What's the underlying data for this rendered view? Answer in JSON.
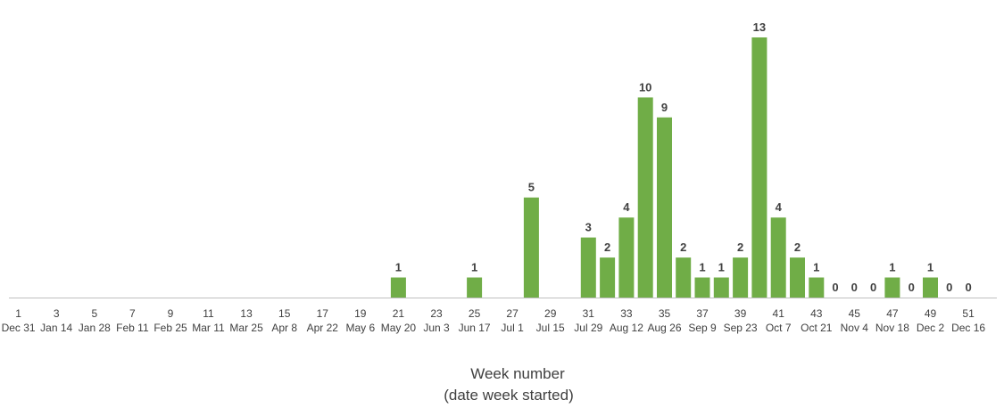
{
  "chart_data": {
    "type": "bar",
    "x": [
      1,
      2,
      3,
      4,
      5,
      6,
      7,
      8,
      9,
      10,
      11,
      12,
      13,
      14,
      15,
      16,
      17,
      18,
      19,
      20,
      21,
      22,
      23,
      24,
      25,
      26,
      27,
      28,
      29,
      30,
      31,
      32,
      33,
      34,
      35,
      36,
      37,
      38,
      39,
      40,
      41,
      42,
      43,
      44,
      45,
      46,
      47,
      48,
      49,
      50,
      51,
      52
    ],
    "values": [
      null,
      null,
      null,
      null,
      null,
      null,
      null,
      null,
      null,
      null,
      null,
      null,
      null,
      null,
      null,
      null,
      null,
      null,
      null,
      null,
      1,
      null,
      null,
      null,
      1,
      null,
      null,
      5,
      null,
      null,
      3,
      2,
      4,
      10,
      9,
      2,
      1,
      1,
      2,
      13,
      4,
      2,
      1,
      0,
      0,
      0,
      1,
      0,
      1,
      0,
      0,
      null
    ],
    "tick_weeks": [
      "1",
      "3",
      "5",
      "7",
      "9",
      "11",
      "13",
      "15",
      "17",
      "19",
      "21",
      "23",
      "25",
      "27",
      "29",
      "31",
      "33",
      "35",
      "37",
      "39",
      "41",
      "43",
      "45",
      "47",
      "49",
      "51"
    ],
    "tick_dates": [
      "Dec 31",
      "Jan 14",
      "Jan 28",
      "Feb 11",
      "Feb 25",
      "Mar 11",
      "Mar 25",
      "Apr 8",
      "Apr 22",
      "May 6",
      "May 20",
      "Jun 3",
      "Jun 17",
      "Jul 1",
      "Jul 15",
      "Jul 29",
      "Aug 12",
      "Aug 26",
      "Sep 9",
      "Sep 23",
      "Oct 7",
      "Oct 21",
      "Nov 4",
      "Nov 18",
      "Dec 2",
      "Dec 16"
    ],
    "xlabel": "Week number",
    "xlabel_sub": "(date week started)",
    "ylim": [
      0,
      13
    ],
    "grid": false,
    "bar_color": "#70ad47"
  }
}
